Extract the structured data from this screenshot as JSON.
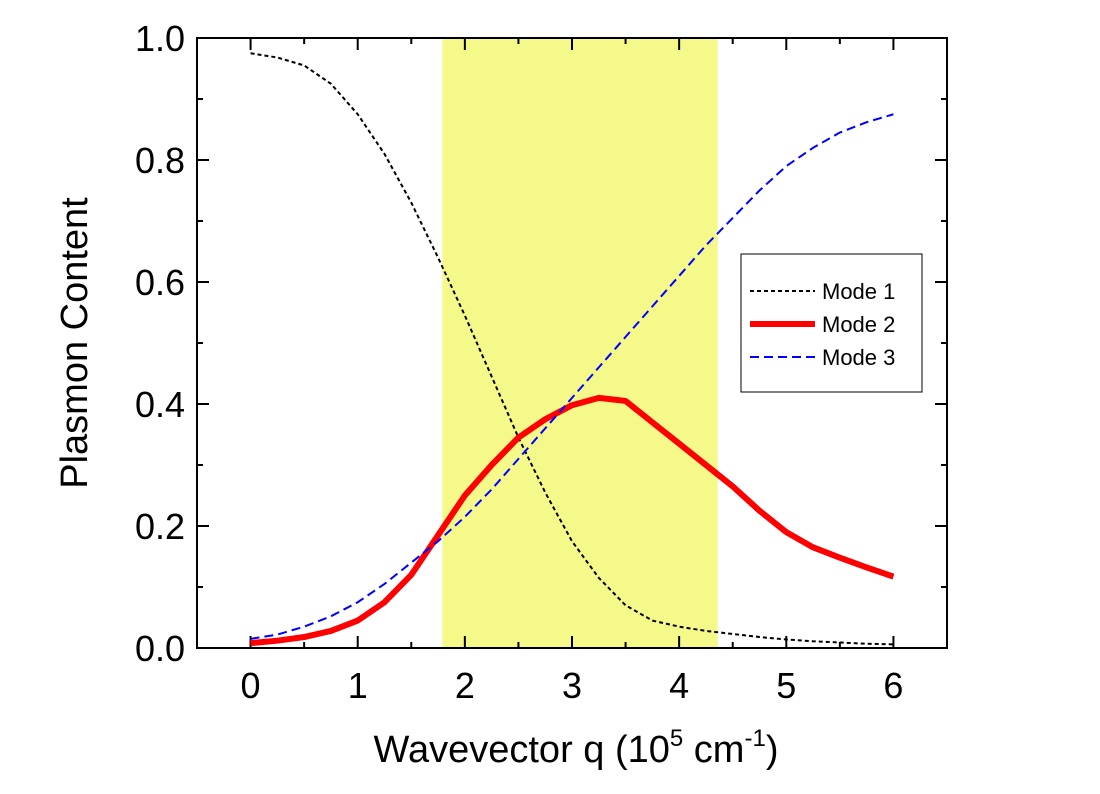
{
  "chart_data": {
    "type": "line",
    "ylabel": "Plasmon Content",
    "xlabel_parts": [
      "Wavevector q (10",
      "5",
      " cm",
      "-1",
      ")"
    ],
    "x": [
      0,
      0.25,
      0.5,
      0.75,
      1,
      1.25,
      1.5,
      1.75,
      2,
      2.25,
      2.5,
      2.75,
      3,
      3.25,
      3.5,
      3.75,
      4,
      4.25,
      4.5,
      4.75,
      5,
      5.25,
      5.5,
      5.75,
      6
    ],
    "series": [
      {
        "name": "Mode 1",
        "color": "#000000",
        "style": "dotted",
        "values": [
          0.975,
          0.968,
          0.955,
          0.925,
          0.875,
          0.81,
          0.73,
          0.64,
          0.545,
          0.445,
          0.345,
          0.255,
          0.175,
          0.115,
          0.07,
          0.045,
          0.035,
          0.028,
          0.023,
          0.018,
          0.014,
          0.011,
          0.009,
          0.007,
          0.006
        ]
      },
      {
        "name": "Mode 2",
        "color": "#ff0000",
        "style": "thick",
        "values": [
          0.008,
          0.012,
          0.018,
          0.028,
          0.045,
          0.075,
          0.12,
          0.185,
          0.25,
          0.3,
          0.345,
          0.375,
          0.398,
          0.41,
          0.405,
          0.37,
          0.335,
          0.3,
          0.265,
          0.225,
          0.19,
          0.165,
          0.148,
          0.132,
          0.117
        ]
      },
      {
        "name": "Mode 3",
        "color": "#0000ff",
        "style": "dashed",
        "values": [
          0.015,
          0.022,
          0.035,
          0.052,
          0.075,
          0.105,
          0.14,
          0.175,
          0.215,
          0.26,
          0.31,
          0.36,
          0.41,
          0.46,
          0.51,
          0.56,
          0.61,
          0.66,
          0.705,
          0.75,
          0.79,
          0.82,
          0.845,
          0.862,
          0.875
        ]
      }
    ],
    "highlight_span": [
      1.79,
      4.36
    ],
    "highlight_color": "#f5f98a",
    "xlim": [
      -0.5,
      6.5
    ],
    "ylim": [
      0,
      1
    ],
    "xticks": [
      0,
      1,
      2,
      3,
      4,
      5,
      6
    ],
    "yticks": [
      {
        "value": 0,
        "label": "0.0"
      },
      0.2,
      0.4,
      0.6,
      0.8,
      {
        "value": 1,
        "label": "1.0"
      }
    ],
    "minor_xticks": [
      -0.5,
      0.5,
      1.5,
      2.5,
      3.5,
      4.5,
      5.5,
      6.5
    ],
    "minor_yticks": [
      0.1,
      0.3,
      0.5,
      0.7,
      0.9
    ],
    "legend": "right"
  }
}
